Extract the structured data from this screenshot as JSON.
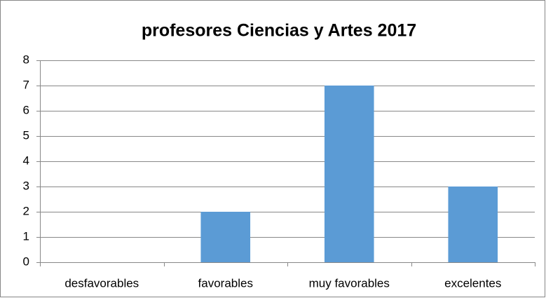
{
  "chart_data": {
    "type": "bar",
    "title": "profesores Ciencias y Artes 2017",
    "categories": [
      "desfavorables",
      "favorables",
      "muy favorables",
      "excelentes"
    ],
    "values": [
      0,
      2,
      7,
      3
    ],
    "color": "#5b9bd5",
    "ylim": [
      0,
      8
    ],
    "yticks": [
      0,
      1,
      2,
      3,
      4,
      5,
      6,
      7,
      8
    ],
    "grid": true
  }
}
